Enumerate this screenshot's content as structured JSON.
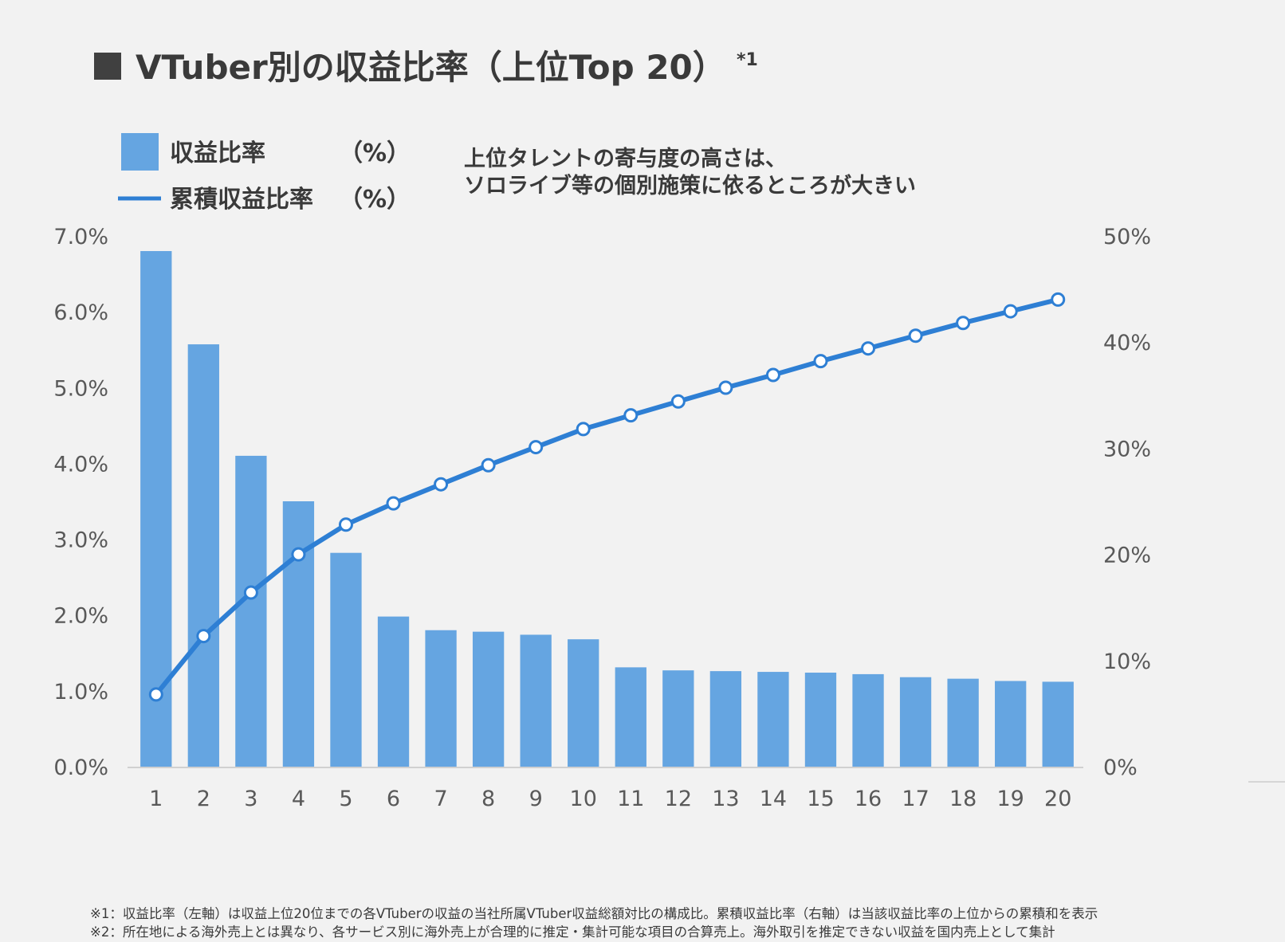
{
  "title": {
    "text": "VTuber別の収益比率（上位Top 20）",
    "note": "*1"
  },
  "legend": {
    "bar_label": "収益比率",
    "bar_unit": "（%）",
    "line_label": "累積収益比率",
    "line_unit": "（%）"
  },
  "annotation": {
    "line1": "上位タレントの寄与度の高さは、",
    "line2": "ソロライブ等の個別施策に依るところが大きい"
  },
  "footnotes": [
    "※1：収益比率（左軸）は収益上位20位までの各VTuberの収益の当社所属VTuber収益総額対比の構成比。累積収益比率（右軸）は当該収益比率の上位からの累積和を表示",
    "※2：所在地による海外売上とは異なり、各サービス別に海外売上が合理的に推定・集計可能な項目の合算売上。海外取引を推定できない収益を国内売上として集計"
  ],
  "colors": {
    "bar": "#65a5e1",
    "line": "#2e7fd4",
    "marker_fill": "#ffffff",
    "background": "#f2f2f2",
    "title_square": "#404040"
  },
  "chart_data": {
    "type": "bar",
    "categories": [
      "1",
      "2",
      "3",
      "4",
      "5",
      "6",
      "7",
      "8",
      "9",
      "10",
      "11",
      "12",
      "13",
      "14",
      "15",
      "16",
      "17",
      "18",
      "19",
      "20"
    ],
    "series": [
      {
        "name": "収益比率",
        "type": "bar",
        "axis": "left",
        "unit": "%",
        "values": [
          6.8,
          5.57,
          4.1,
          3.5,
          2.82,
          1.98,
          1.8,
          1.78,
          1.74,
          1.68,
          1.31,
          1.27,
          1.26,
          1.25,
          1.24,
          1.22,
          1.18,
          1.16,
          1.13,
          1.12
        ]
      },
      {
        "name": "累積収益比率",
        "type": "line",
        "axis": "right",
        "unit": "%",
        "values": [
          6.8,
          12.3,
          16.4,
          20.0,
          22.8,
          24.8,
          26.6,
          28.4,
          30.1,
          31.8,
          33.1,
          34.4,
          35.7,
          36.9,
          38.2,
          39.4,
          40.6,
          41.8,
          42.9,
          44.0
        ]
      }
    ],
    "y_left": {
      "ylim": [
        0,
        7
      ],
      "ticks": [
        0,
        1,
        2,
        3,
        4,
        5,
        6,
        7
      ],
      "tick_labels": [
        "0.0%",
        "1.0%",
        "2.0%",
        "3.0%",
        "4.0%",
        "5.0%",
        "6.0%",
        "7.0%"
      ]
    },
    "y_right": {
      "ylim": [
        0,
        50
      ],
      "ticks": [
        0,
        10,
        20,
        30,
        40,
        50
      ],
      "tick_labels": [
        "0%",
        "10%",
        "20%",
        "30%",
        "40%",
        "50%"
      ]
    },
    "xlabel": "",
    "ylabel": "",
    "grid": false,
    "legend_position": "top-left"
  }
}
